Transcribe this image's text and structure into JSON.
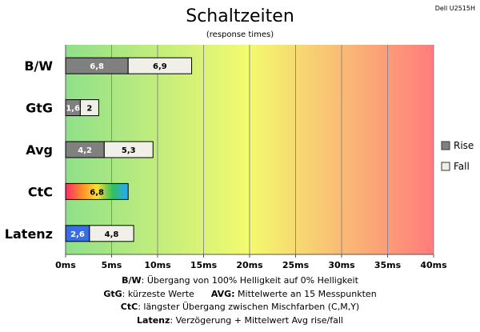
{
  "chart_data": {
    "type": "bar",
    "orientation": "horizontal",
    "stacked": true,
    "title": "Schaltzeiten",
    "subtitle": "(response times)",
    "model_label": "Dell U2515H",
    "categories": [
      "B/W",
      "GtG",
      "Avg",
      "CtC",
      "Latenz"
    ],
    "series": [
      {
        "name": "Rise",
        "values": [
          6.8,
          1.6,
          4.2,
          6.8,
          2.6
        ]
      },
      {
        "name": "Fall",
        "values": [
          6.9,
          2,
          5.3,
          null,
          4.8
        ]
      }
    ],
    "value_labels": {
      "Rise": [
        "6,8",
        "1,6",
        "4,2",
        "6,8",
        "2,6"
      ],
      "Fall": [
        "6,9",
        "2",
        "5,3",
        "",
        "4,8"
      ]
    },
    "xlim": [
      0,
      40
    ],
    "x_ticks": [
      0,
      5,
      10,
      15,
      20,
      25,
      30,
      35,
      40
    ],
    "x_tick_labels": [
      "0ms",
      "5ms",
      "10ms",
      "15ms",
      "20ms",
      "25ms",
      "30ms",
      "35ms",
      "40ms"
    ],
    "grid": true,
    "legend_position": "right",
    "background_gradient": [
      "#8fe08a",
      "#f4fa6e",
      "#ff7c7c"
    ],
    "colors": {
      "rise": "#808080",
      "fall": "#f0efe8",
      "latenz_rise": "#3a6de0",
      "ctc_gradient": [
        "#ff2a6a",
        "#ff8a2a",
        "#ffe030",
        "#30c060",
        "#2aa6ff"
      ]
    }
  },
  "notes": [
    {
      "key": "B/W",
      "text": ":  Übergang von 100% Helligkeit auf 0% Helligkeit"
    },
    {
      "key": "GtG",
      "text": ": kürzeste  Werte",
      "key2": "AVG:",
      "text2": " Mittelwerte  an 15 Messpunkten"
    },
    {
      "key": "CtC",
      "text": ": längster Übergang zwischen Mischfarben (C,M,Y)"
    },
    {
      "key": "Latenz",
      "text": ": Verzögerung  + Mittelwert Avg rise/fall"
    }
  ]
}
